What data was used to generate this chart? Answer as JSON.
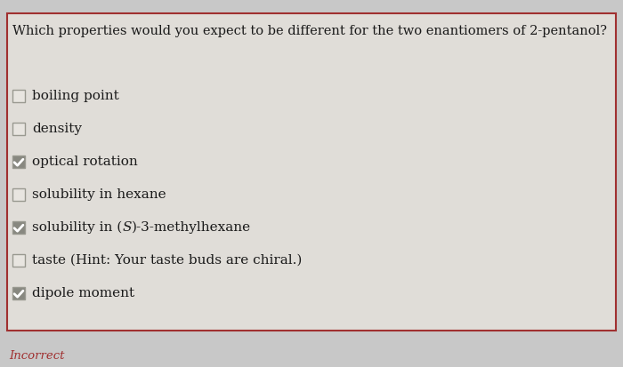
{
  "question": "Which properties would you expect to be different for the two enantiomers of 2-pentanol?",
  "items": [
    {
      "label": "boiling point",
      "checked": false,
      "before_italic": null,
      "italic_text": null,
      "after_italic": null
    },
    {
      "label": "density",
      "checked": false,
      "before_italic": null,
      "italic_text": null,
      "after_italic": null
    },
    {
      "label": "optical rotation",
      "checked": true,
      "before_italic": null,
      "italic_text": null,
      "after_italic": null
    },
    {
      "label": "solubility in hexane",
      "checked": false,
      "before_italic": null,
      "italic_text": null,
      "after_italic": null
    },
    {
      "label": "solubility in (S)-3-methylhexane",
      "checked": true,
      "before_italic": "solubility in (",
      "italic_text": "S",
      "after_italic": ")-3-methylhexane"
    },
    {
      "label": "taste (Hint: Your taste buds are chiral.)",
      "checked": false,
      "before_italic": null,
      "italic_text": null,
      "after_italic": null
    },
    {
      "label": "dipole moment",
      "checked": true,
      "before_italic": null,
      "italic_text": null,
      "after_italic": null
    }
  ],
  "incorrect_label": "Incorrect",
  "bg_color": "#c8c8c8",
  "box_bg_color": "#e0ddd8",
  "border_color": "#a03030",
  "text_color": "#1a1a1a",
  "incorrect_color": "#a03030",
  "checkbox_unchecked_fill": "#e8e5e0",
  "checkbox_checked_fill": "#888880",
  "checkbox_edge_color": "#999990",
  "check_color": "#ffffff",
  "question_fontsize": 10.5,
  "item_fontsize": 11.0,
  "incorrect_fontsize": 9.5
}
